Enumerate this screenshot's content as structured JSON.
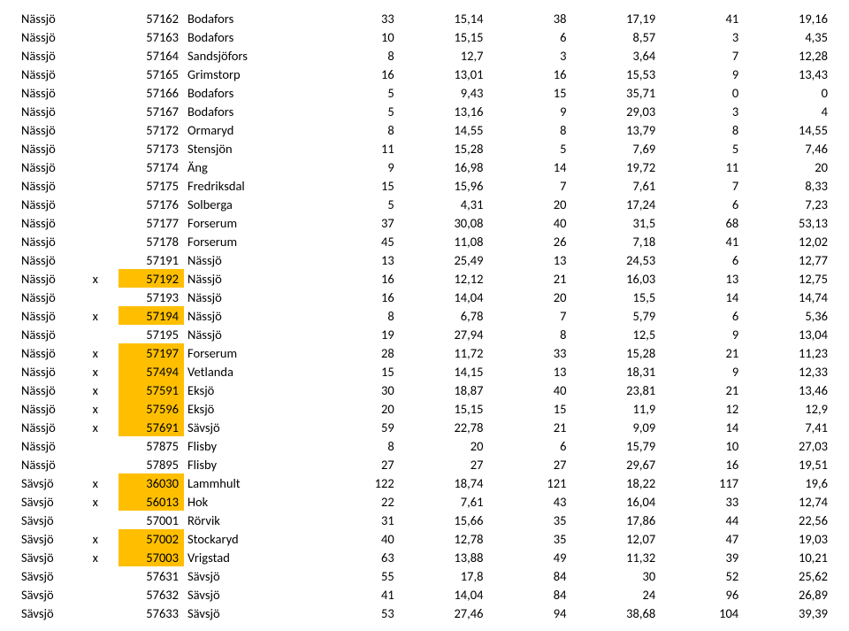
{
  "highlight_color": "#ffbf00",
  "rows": [
    {
      "mun": "Nässjö",
      "x": "",
      "hl": false,
      "code": "57162",
      "name": "Bodafors",
      "c1": "33",
      "c2": "15,14",
      "c3": "38",
      "c4": "17,19",
      "c5": "41",
      "c6": "19,16"
    },
    {
      "mun": "Nässjö",
      "x": "",
      "hl": false,
      "code": "57163",
      "name": "Bodafors",
      "c1": "10",
      "c2": "15,15",
      "c3": "6",
      "c4": "8,57",
      "c5": "3",
      "c6": "4,35"
    },
    {
      "mun": "Nässjö",
      "x": "",
      "hl": false,
      "code": "57164",
      "name": "Sandsjöfors",
      "c1": "8",
      "c2": "12,7",
      "c3": "3",
      "c4": "3,64",
      "c5": "7",
      "c6": "12,28"
    },
    {
      "mun": "Nässjö",
      "x": "",
      "hl": false,
      "code": "57165",
      "name": "Grimstorp",
      "c1": "16",
      "c2": "13,01",
      "c3": "16",
      "c4": "15,53",
      "c5": "9",
      "c6": "13,43"
    },
    {
      "mun": "Nässjö",
      "x": "",
      "hl": false,
      "code": "57166",
      "name": "Bodafors",
      "c1": "5",
      "c2": "9,43",
      "c3": "15",
      "c4": "35,71",
      "c5": "0",
      "c6": "0"
    },
    {
      "mun": "Nässjö",
      "x": "",
      "hl": false,
      "code": "57167",
      "name": "Bodafors",
      "c1": "5",
      "c2": "13,16",
      "c3": "9",
      "c4": "29,03",
      "c5": "3",
      "c6": "4"
    },
    {
      "mun": "Nässjö",
      "x": "",
      "hl": false,
      "code": "57172",
      "name": "Ormaryd",
      "c1": "8",
      "c2": "14,55",
      "c3": "8",
      "c4": "13,79",
      "c5": "8",
      "c6": "14,55"
    },
    {
      "mun": "Nässjö",
      "x": "",
      "hl": false,
      "code": "57173",
      "name": "Stensjön",
      "c1": "11",
      "c2": "15,28",
      "c3": "5",
      "c4": "7,69",
      "c5": "5",
      "c6": "7,46"
    },
    {
      "mun": "Nässjö",
      "x": "",
      "hl": false,
      "code": "57174",
      "name": "Äng",
      "c1": "9",
      "c2": "16,98",
      "c3": "14",
      "c4": "19,72",
      "c5": "11",
      "c6": "20"
    },
    {
      "mun": "Nässjö",
      "x": "",
      "hl": false,
      "code": "57175",
      "name": "Fredriksdal",
      "c1": "15",
      "c2": "15,96",
      "c3": "7",
      "c4": "7,61",
      "c5": "7",
      "c6": "8,33"
    },
    {
      "mun": "Nässjö",
      "x": "",
      "hl": false,
      "code": "57176",
      "name": "Solberga",
      "c1": "5",
      "c2": "4,31",
      "c3": "20",
      "c4": "17,24",
      "c5": "6",
      "c6": "7,23"
    },
    {
      "mun": "Nässjö",
      "x": "",
      "hl": false,
      "code": "57177",
      "name": "Forserum",
      "c1": "37",
      "c2": "30,08",
      "c3": "40",
      "c4": "31,5",
      "c5": "68",
      "c6": "53,13"
    },
    {
      "mun": "Nässjö",
      "x": "",
      "hl": false,
      "code": "57178",
      "name": "Forserum",
      "c1": "45",
      "c2": "11,08",
      "c3": "26",
      "c4": "7,18",
      "c5": "41",
      "c6": "12,02"
    },
    {
      "mun": "Nässjö",
      "x": "",
      "hl": false,
      "code": "57191",
      "name": "Nässjö",
      "c1": "13",
      "c2": "25,49",
      "c3": "13",
      "c4": "24,53",
      "c5": "6",
      "c6": "12,77"
    },
    {
      "mun": "Nässjö",
      "x": "x",
      "hl": true,
      "code": "57192",
      "name": "Nässjö",
      "c1": "16",
      "c2": "12,12",
      "c3": "21",
      "c4": "16,03",
      "c5": "13",
      "c6": "12,75"
    },
    {
      "mun": "Nässjö",
      "x": "",
      "hl": false,
      "code": "57193",
      "name": "Nässjö",
      "c1": "16",
      "c2": "14,04",
      "c3": "20",
      "c4": "15,5",
      "c5": "14",
      "c6": "14,74"
    },
    {
      "mun": "Nässjö",
      "x": "x",
      "hl": true,
      "code": "57194",
      "name": "Nässjö",
      "c1": "8",
      "c2": "6,78",
      "c3": "7",
      "c4": "5,79",
      "c5": "6",
      "c6": "5,36"
    },
    {
      "mun": "Nässjö",
      "x": "",
      "hl": false,
      "code": "57195",
      "name": "Nässjö",
      "c1": "19",
      "c2": "27,94",
      "c3": "8",
      "c4": "12,5",
      "c5": "9",
      "c6": "13,04"
    },
    {
      "mun": "Nässjö",
      "x": "x",
      "hl": true,
      "code": "57197",
      "name": "Forserum",
      "c1": "28",
      "c2": "11,72",
      "c3": "33",
      "c4": "15,28",
      "c5": "21",
      "c6": "11,23"
    },
    {
      "mun": "Nässjö",
      "x": "x",
      "hl": true,
      "code": "57494",
      "name": "Vetlanda",
      "c1": "15",
      "c2": "14,15",
      "c3": "13",
      "c4": "18,31",
      "c5": "9",
      "c6": "12,33"
    },
    {
      "mun": "Nässjö",
      "x": "x",
      "hl": true,
      "code": "57591",
      "name": "Eksjö",
      "c1": "30",
      "c2": "18,87",
      "c3": "40",
      "c4": "23,81",
      "c5": "21",
      "c6": "13,46"
    },
    {
      "mun": "Nässjö",
      "x": "x",
      "hl": true,
      "code": "57596",
      "name": "Eksjö",
      "c1": "20",
      "c2": "15,15",
      "c3": "15",
      "c4": "11,9",
      "c5": "12",
      "c6": "12,9"
    },
    {
      "mun": "Nässjö",
      "x": "x",
      "hl": true,
      "code": "57691",
      "name": "Sävsjö",
      "c1": "59",
      "c2": "22,78",
      "c3": "21",
      "c4": "9,09",
      "c5": "14",
      "c6": "7,41"
    },
    {
      "mun": "Nässjö",
      "x": "",
      "hl": false,
      "code": "57875",
      "name": "Flisby",
      "c1": "8",
      "c2": "20",
      "c3": "6",
      "c4": "15,79",
      "c5": "10",
      "c6": "27,03"
    },
    {
      "mun": "Nässjö",
      "x": "",
      "hl": false,
      "code": "57895",
      "name": "Flisby",
      "c1": "27",
      "c2": "27",
      "c3": "27",
      "c4": "29,67",
      "c5": "16",
      "c6": "19,51"
    },
    {
      "mun": "Sävsjö",
      "x": "x",
      "hl": true,
      "code": "36030",
      "name": "Lammhult",
      "c1": "122",
      "c2": "18,74",
      "c3": "121",
      "c4": "18,22",
      "c5": "117",
      "c6": "19,6"
    },
    {
      "mun": "Sävsjö",
      "x": "x",
      "hl": true,
      "code": "56013",
      "name": "Hok",
      "c1": "22",
      "c2": "7,61",
      "c3": "43",
      "c4": "16,04",
      "c5": "33",
      "c6": "12,74"
    },
    {
      "mun": "Sävsjö",
      "x": "",
      "hl": false,
      "code": "57001",
      "name": "Rörvik",
      "c1": "31",
      "c2": "15,66",
      "c3": "35",
      "c4": "17,86",
      "c5": "44",
      "c6": "22,56"
    },
    {
      "mun": "Sävsjö",
      "x": "x",
      "hl": true,
      "code": "57002",
      "name": "Stockaryd",
      "c1": "40",
      "c2": "12,78",
      "c3": "35",
      "c4": "12,07",
      "c5": "47",
      "c6": "19,03"
    },
    {
      "mun": "Sävsjö",
      "x": "x",
      "hl": true,
      "code": "57003",
      "name": "Vrigstad",
      "c1": "63",
      "c2": "13,88",
      "c3": "49",
      "c4": "11,32",
      "c5": "39",
      "c6": "10,21"
    },
    {
      "mun": "Sävsjö",
      "x": "",
      "hl": false,
      "code": "57631",
      "name": "Sävsjö",
      "c1": "55",
      "c2": "17,8",
      "c3": "84",
      "c4": "30",
      "c5": "52",
      "c6": "25,62"
    },
    {
      "mun": "Sävsjö",
      "x": "",
      "hl": false,
      "code": "57632",
      "name": "Sävsjö",
      "c1": "41",
      "c2": "14,04",
      "c3": "84",
      "c4": "24",
      "c5": "96",
      "c6": "26,89"
    },
    {
      "mun": "Sävsjö",
      "x": "",
      "hl": false,
      "code": "57633",
      "name": "Sävsjö",
      "c1": "53",
      "c2": "27,46",
      "c3": "94",
      "c4": "38,68",
      "c5": "104",
      "c6": "39,39"
    }
  ]
}
